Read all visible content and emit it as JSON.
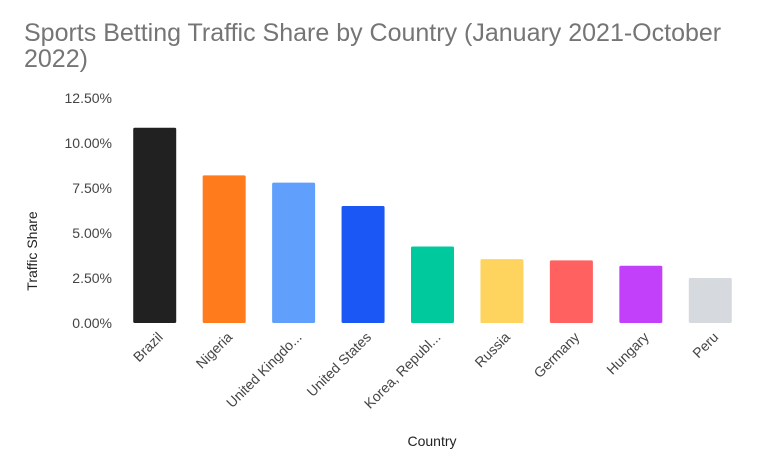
{
  "chart_data": {
    "type": "bar",
    "title": "Sports Betting Traffic Share by Country (January 2021-October 2022)",
    "xlabel": "Country",
    "ylabel": "Traffic Share",
    "categories": [
      "Brazil",
      "Nigeria",
      "United Kingdo...",
      "United States",
      "Korea, Republ...",
      "Russia",
      "Germany",
      "Hungary",
      "Peru"
    ],
    "values": [
      10.85,
      8.2,
      7.8,
      6.5,
      4.25,
      3.55,
      3.48,
      3.18,
      2.5
    ],
    "colors": [
      "#212121",
      "#ff7b1c",
      "#619ffc",
      "#1a57f5",
      "#00c99d",
      "#ffd45e",
      "#ff6161",
      "#c340fb",
      "#d6d9dd"
    ],
    "yticks": [
      "0.00%",
      "2.50%",
      "5.00%",
      "7.50%",
      "10.00%",
      "12.50%"
    ],
    "ylim": [
      0,
      12.5
    ],
    "grid": false,
    "legend": "none"
  }
}
